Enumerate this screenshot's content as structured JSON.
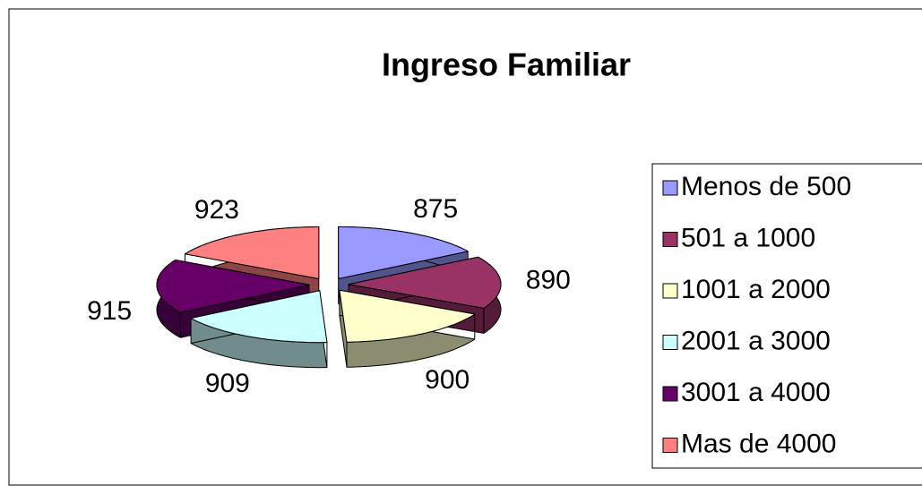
{
  "chart_data": {
    "type": "pie",
    "title": "Ingreso Familiar",
    "categories": [
      "Menos de 500",
      "501 a 1000",
      "1001 a 2000",
      "2001 a 3000",
      "3001 a 4000",
      "Mas de 4000"
    ],
    "values": [
      875,
      890,
      900,
      909,
      915,
      923
    ],
    "colors": [
      "#9999ff",
      "#993366",
      "#ffffcc",
      "#ccffff",
      "#660066",
      "#ff8080"
    ],
    "legend": "right"
  }
}
